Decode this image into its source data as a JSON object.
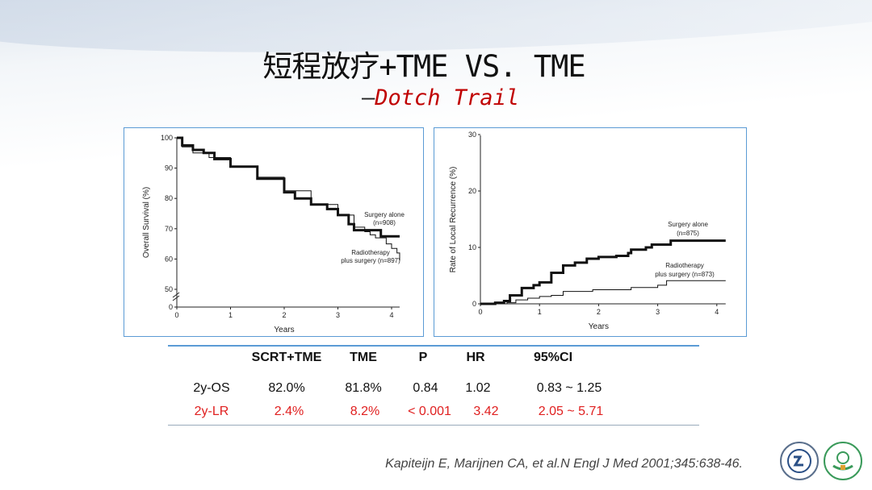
{
  "slide": {
    "title": "短程放疗+TME VS. TME",
    "subtitle_dash": "—",
    "subtitle": "Dotch Trail",
    "citation": "Kapiteijn E, Marijnen CA, et al.N Engl J Med 2001;345:638-46.",
    "logos": [
      "university-seal",
      "hospital-seal"
    ]
  },
  "table": {
    "headers": [
      "",
      "SCRT+TME",
      "TME",
      "P",
      "HR",
      "95%CI"
    ],
    "rows": [
      [
        "2y-OS",
        "82.0%",
        "81.8%",
        "0.84",
        "1.02",
        "0.83 ~ 1.25"
      ],
      [
        "2y-LR",
        "2.4%",
        "8.2%",
        "< 0.001",
        "3.42",
        "2.05 ~ 5.71"
      ]
    ],
    "highlight_color": "#e02020"
  },
  "chart_data": [
    {
      "type": "line",
      "xlabel": "Years",
      "ylabel": "Overall Survival (%)",
      "xlim": [
        0,
        4
      ],
      "ylim": [
        0,
        100
      ],
      "xticks": [
        "0",
        "1",
        "2",
        "3",
        "4"
      ],
      "yticks": [
        "0",
        "50",
        "60",
        "70",
        "80",
        "90",
        "100"
      ],
      "axis_break": true,
      "series": [
        {
          "name": "Surgery alone",
          "n_label": "(n=908)",
          "style": "thick",
          "x": [
            0,
            0.1,
            0.3,
            0.5,
            0.7,
            1,
            1.5,
            2,
            2.2,
            2.5,
            2.8,
            3,
            3.2,
            3.3,
            3.7,
            3.8,
            4.15
          ],
          "y": [
            100,
            97.5,
            96,
            95,
            93,
            90.5,
            86.5,
            82,
            80,
            78,
            76.5,
            74.5,
            71.5,
            69.5,
            69.5,
            67.5,
            67.5
          ]
        },
        {
          "name": "Radiotherapy",
          "name2": "plus surgery (n=897)",
          "style": "thin",
          "x": [
            0,
            0.1,
            0.3,
            0.6,
            1,
            1.5,
            2,
            2.5,
            3,
            3.3,
            3.5,
            3.6,
            3.7,
            3.9,
            4,
            4.1,
            4.15
          ],
          "y": [
            100,
            97,
            95,
            93.5,
            90.5,
            87,
            82.5,
            78,
            74.5,
            70.5,
            69,
            68,
            67,
            65,
            63.5,
            62,
            59.5
          ]
        }
      ]
    },
    {
      "type": "line",
      "xlabel": "Years",
      "ylabel": "Rate of Local Recurrence (%)",
      "xlim": [
        0,
        4
      ],
      "ylim": [
        0,
        30
      ],
      "xticks": [
        "0",
        "1",
        "2",
        "3",
        "4"
      ],
      "yticks": [
        "0",
        "10",
        "20",
        "30"
      ],
      "series": [
        {
          "name": "Surgery alone",
          "n_label": "(n=875)",
          "style": "thick",
          "x": [
            0,
            0.25,
            0.4,
            0.5,
            0.7,
            0.9,
            1,
            1.2,
            1.4,
            1.6,
            1.8,
            2,
            2.3,
            2.5,
            2.55,
            2.8,
            2.9,
            3.22,
            4.15
          ],
          "y": [
            0,
            0.2,
            0.5,
            1.5,
            2.8,
            3.3,
            3.8,
            5.5,
            6.8,
            7.3,
            8,
            8.3,
            8.5,
            9,
            9.6,
            10,
            10.5,
            11.2,
            11.2
          ]
        },
        {
          "name": "Radiotherapy",
          "name2": "plus surgery (n=873)",
          "style": "thin",
          "x": [
            0,
            0.45,
            0.6,
            0.8,
            1,
            1.2,
            1.4,
            1.9,
            2.55,
            3,
            3.15,
            4.15
          ],
          "y": [
            0,
            0.2,
            0.7,
            1,
            1.3,
            1.5,
            2.2,
            2.5,
            2.9,
            3.3,
            4.1,
            4.1
          ]
        }
      ]
    }
  ]
}
